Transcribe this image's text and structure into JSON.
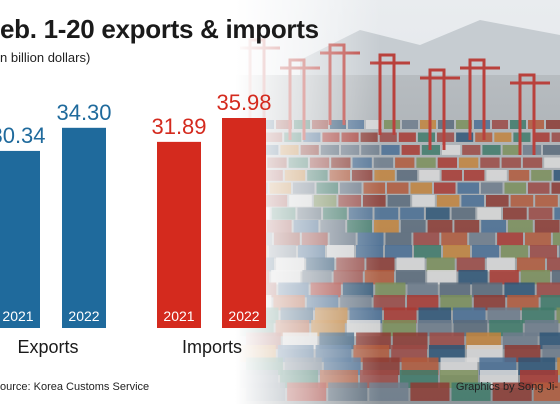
{
  "header": {
    "title": "eb. 1-20 exports & imports",
    "unit": "n billion dollars)"
  },
  "footer": {
    "source": "ource: Korea Customs Service",
    "credit": "Graphics by Song Ji-"
  },
  "colors": {
    "exports": "#1f6a9c",
    "imports": "#d42a1e",
    "export_value_text": "#1f6a9c",
    "import_value_text": "#d42a1e",
    "bar_label_text": "#ffffff"
  },
  "background_image": "photo of port container terminal with stacked shipping containers and cranes",
  "chart_data": [
    {
      "type": "bar",
      "group_label": "Exports",
      "categories": [
        "2021",
        "2022"
      ],
      "values": [
        30.34,
        34.3
      ],
      "value_labels": [
        "30.34",
        "34.30"
      ],
      "color": "#1f6a9c"
    },
    {
      "type": "bar",
      "group_label": "Imports",
      "categories": [
        "2021",
        "2022"
      ],
      "values": [
        31.89,
        35.98
      ],
      "value_labels": [
        "31.89",
        "35.98"
      ],
      "color": "#d42a1e"
    }
  ]
}
